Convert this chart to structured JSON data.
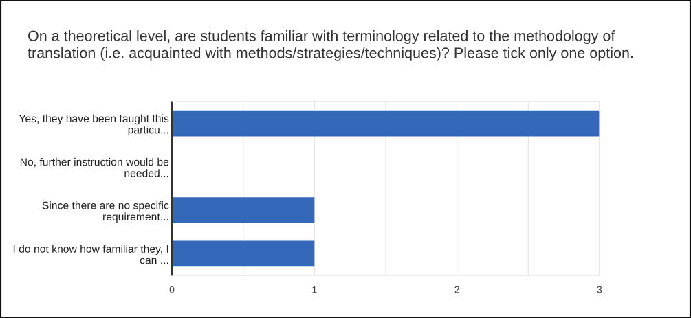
{
  "chart_data": {
    "type": "bar",
    "orientation": "horizontal",
    "title": "On a theoretical level, are students familiar with terminology related to the methodology of\ntranslation (i.e. acquainted with methods/strategies/techniques)? Please tick only one option.",
    "categories": [
      "Yes, they have been taught this\nparticu...",
      "No, further instruction would be\nneeded...",
      "Since there are no specific\nrequirement...",
      "I do not know how familiar they, I\ncan ..."
    ],
    "values": [
      3,
      0,
      1,
      1
    ],
    "color": "#3468b8",
    "xlim": [
      0,
      3
    ],
    "xticks": [
      0,
      {
        "value": 0.5,
        "label": null
      },
      1,
      {
        "value": 1.5,
        "label": null
      },
      2,
      {
        "value": 2.5,
        "label": null
      },
      3
    ],
    "grid": "x"
  }
}
